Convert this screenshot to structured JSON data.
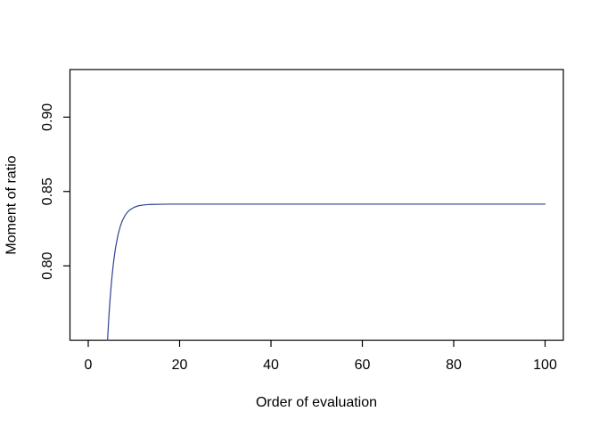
{
  "figure": {
    "background_color": "#ffffff",
    "axis_color": "#000000",
    "text_color": "#000000"
  },
  "chart_data": {
    "type": "line",
    "title": "",
    "xlabel": "Order of evaluation",
    "ylabel": "Moment of ratio",
    "xlim": [
      -4,
      104
    ],
    "ylim": [
      0.75,
      0.932
    ],
    "x_ticks": [
      0,
      20,
      40,
      60,
      80,
      100
    ],
    "x_tick_labels": [
      "0",
      "20",
      "40",
      "60",
      "80",
      "100"
    ],
    "y_ticks": [
      0.8,
      0.85,
      0.9
    ],
    "y_tick_labels": [
      "0.80",
      "0.85",
      "0.90"
    ],
    "grid": "off",
    "legend": "none",
    "line_color": "#2e4391",
    "asymptote_value": 0.8415,
    "series": [
      {
        "name": "moment-of-ratio-curve",
        "points": [
          [
            4.22,
            0.75
          ],
          [
            4.3,
            0.7541
          ],
          [
            4.4,
            0.7596
          ],
          [
            4.5,
            0.7648
          ],
          [
            4.6,
            0.7696
          ],
          [
            4.8,
            0.7783
          ],
          [
            5,
            0.786
          ],
          [
            5.25,
            0.7943
          ],
          [
            5.5,
            0.8014
          ],
          [
            5.75,
            0.8074
          ],
          [
            6,
            0.8126
          ],
          [
            6.5,
            0.8206
          ],
          [
            7,
            0.8264
          ],
          [
            7.5,
            0.8306
          ],
          [
            8,
            0.8336
          ],
          [
            8.5,
            0.8358
          ],
          [
            9,
            0.8374
          ],
          [
            10,
            0.8393
          ],
          [
            11,
            0.8404
          ],
          [
            12,
            0.8409
          ],
          [
            13,
            0.8412
          ],
          [
            14,
            0.8413
          ],
          [
            16,
            0.8414
          ],
          [
            18,
            0.8415
          ],
          [
            20,
            0.8415
          ],
          [
            25,
            0.8415
          ],
          [
            30,
            0.8415
          ],
          [
            40,
            0.8415
          ],
          [
            50,
            0.8415
          ],
          [
            60,
            0.8415
          ],
          [
            70,
            0.8415
          ],
          [
            80,
            0.8415
          ],
          [
            90,
            0.8415
          ],
          [
            100,
            0.8415
          ]
        ]
      }
    ]
  }
}
